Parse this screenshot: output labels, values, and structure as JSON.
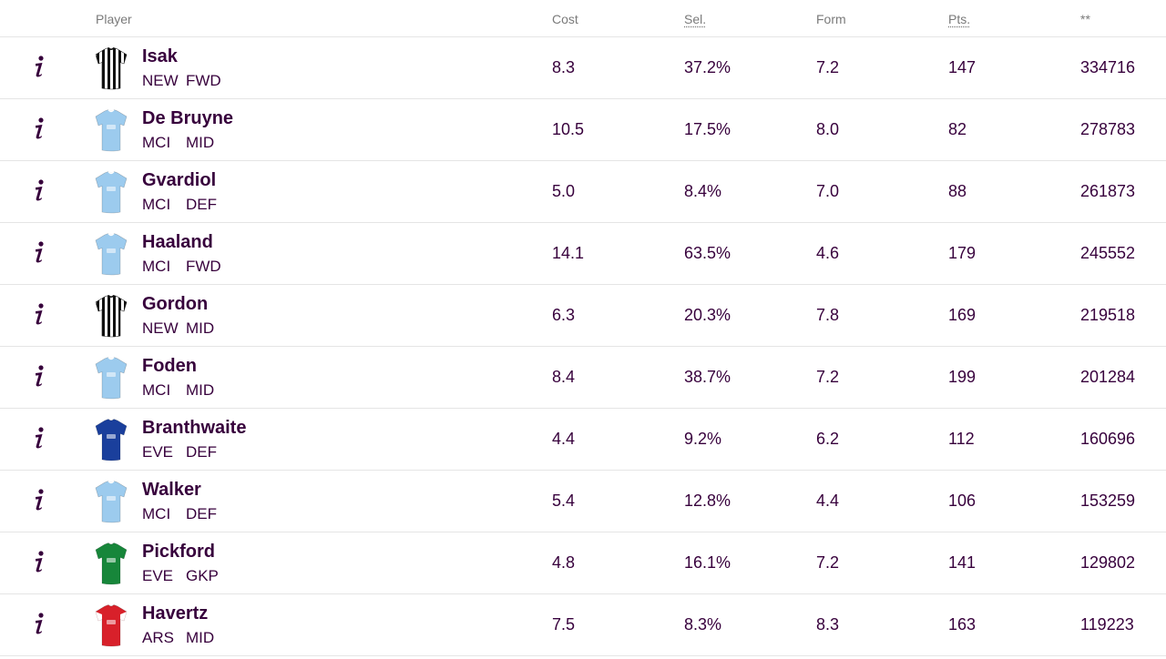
{
  "columns": {
    "player": "Player",
    "cost": "Cost",
    "sel": "Sel.",
    "form": "Form",
    "pts": "Pts.",
    "stat": "**"
  },
  "info_icon": "info-icon",
  "players": [
    {
      "name": "Isak",
      "team": "NEW",
      "pos": "FWD",
      "cost": "8.3",
      "sel": "37.2%",
      "form": "7.2",
      "pts": "147",
      "stat": "334716",
      "kit": "stripes"
    },
    {
      "name": "De Bruyne",
      "team": "MCI",
      "pos": "MID",
      "cost": "10.5",
      "sel": "17.5%",
      "form": "8.0",
      "pts": "82",
      "stat": "278783",
      "kit": "sky"
    },
    {
      "name": "Gvardiol",
      "team": "MCI",
      "pos": "DEF",
      "cost": "5.0",
      "sel": "8.4%",
      "form": "7.0",
      "pts": "88",
      "stat": "261873",
      "kit": "sky"
    },
    {
      "name": "Haaland",
      "team": "MCI",
      "pos": "FWD",
      "cost": "14.1",
      "sel": "63.5%",
      "form": "4.6",
      "pts": "179",
      "stat": "245552",
      "kit": "sky"
    },
    {
      "name": "Gordon",
      "team": "NEW",
      "pos": "MID",
      "cost": "6.3",
      "sel": "20.3%",
      "form": "7.8",
      "pts": "169",
      "stat": "219518",
      "kit": "stripes"
    },
    {
      "name": "Foden",
      "team": "MCI",
      "pos": "MID",
      "cost": "8.4",
      "sel": "38.7%",
      "form": "7.2",
      "pts": "199",
      "stat": "201284",
      "kit": "sky"
    },
    {
      "name": "Branthwaite",
      "team": "EVE",
      "pos": "DEF",
      "cost": "4.4",
      "sel": "9.2%",
      "form": "6.2",
      "pts": "112",
      "stat": "160696",
      "kit": "blue"
    },
    {
      "name": "Walker",
      "team": "MCI",
      "pos": "DEF",
      "cost": "5.4",
      "sel": "12.8%",
      "form": "4.4",
      "pts": "106",
      "stat": "153259",
      "kit": "sky"
    },
    {
      "name": "Pickford",
      "team": "EVE",
      "pos": "GKP",
      "cost": "4.8",
      "sel": "16.1%",
      "form": "7.2",
      "pts": "141",
      "stat": "129802",
      "kit": "green"
    },
    {
      "name": "Havertz",
      "team": "ARS",
      "pos": "MID",
      "cost": "7.5",
      "sel": "8.3%",
      "form": "8.3",
      "pts": "163",
      "stat": "119223",
      "kit": "red"
    }
  ],
  "colors": {
    "text": "#37003c",
    "header_text": "#7a7a7a",
    "divider": "#e5e5e5",
    "kit_sky": "#9ccbee",
    "kit_blue": "#1a3f9c",
    "kit_green": "#17863a",
    "kit_red": "#d8202a"
  }
}
